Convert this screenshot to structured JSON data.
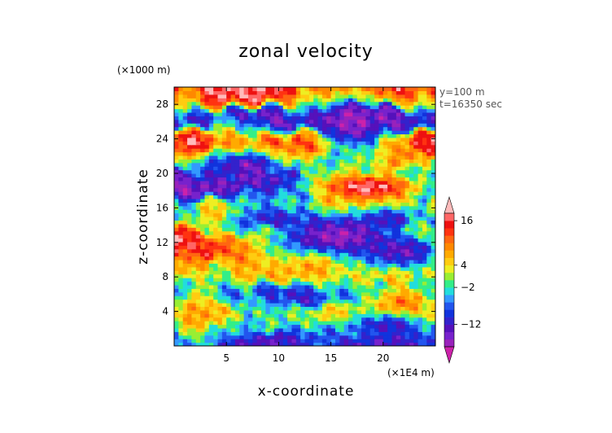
{
  "chart_data": {
    "type": "heatmap",
    "title": "zonal velocity",
    "xlabel": "x-coordinate",
    "ylabel": "z-coordinate",
    "x_unit": "(×1E4 m)",
    "y_unit": "(×1000 m)",
    "info_lines": [
      "y=100 m",
      "t=16350 sec"
    ],
    "xlim": [
      0,
      25
    ],
    "ylim": [
      0,
      30
    ],
    "x_ticks": [
      {
        "value": 5,
        "label": "5"
      },
      {
        "value": 10,
        "label": "10"
      },
      {
        "value": 15,
        "label": "15"
      },
      {
        "value": 20,
        "label": "20"
      }
    ],
    "y_ticks": [
      {
        "value": 4,
        "label": "4"
      },
      {
        "value": 8,
        "label": "8"
      },
      {
        "value": 12,
        "label": "12"
      },
      {
        "value": 16,
        "label": "16"
      },
      {
        "value": 20,
        "label": "20"
      },
      {
        "value": 24,
        "label": "24"
      },
      {
        "value": 28,
        "label": "28"
      }
    ],
    "colorbar": {
      "levels": [
        -20,
        -18,
        -16,
        -14,
        -12,
        -10,
        -8,
        -6,
        -4,
        -2,
        0,
        2,
        4,
        6,
        8,
        10,
        12,
        14,
        16,
        18,
        20
      ],
      "colors": [
        "#cc22aa",
        "#9922bb",
        "#7722cc",
        "#5511bb",
        "#3322cc",
        "#1133dd",
        "#2255ee",
        "#3399ff",
        "#22dddd",
        "#33ee88",
        "#99ee33",
        "#eeee22",
        "#ffcc11",
        "#ffaa00",
        "#ff8800",
        "#ff6611",
        "#ff3311",
        "#ee1111",
        "#ff6666",
        "#ffbbbb"
      ],
      "extend": "both",
      "tick_labels": [
        {
          "value": 16,
          "label": "16"
        },
        {
          "value": 4,
          "label": "4"
        },
        {
          "value": -2,
          "label": "−2"
        },
        {
          "value": -12,
          "label": "−12"
        }
      ]
    },
    "field": {
      "nx": 60,
      "nz": 72,
      "bands": [
        {
          "z": 0.8,
          "v": -13,
          "w": 1.0
        },
        {
          "z": 2.4,
          "v": -4,
          "w": 1.2
        },
        {
          "z": 3.8,
          "v": 6,
          "w": 1.4
        },
        {
          "z": 6.0,
          "v": -13,
          "w": 1.6
        },
        {
          "z": 8.6,
          "v": 8,
          "w": 1.6
        },
        {
          "z": 12.2,
          "v": 17,
          "w": 2.0
        },
        {
          "z": 14.6,
          "v": -10,
          "w": 1.0
        },
        {
          "z": 16.2,
          "v": 4,
          "w": 1.2
        },
        {
          "z": 18.8,
          "v": -17,
          "w": 1.8
        },
        {
          "z": 21.6,
          "v": 4,
          "w": 1.4
        },
        {
          "z": 23.8,
          "v": 17,
          "w": 1.5
        },
        {
          "z": 26.2,
          "v": -15,
          "w": 1.6
        },
        {
          "z": 29.0,
          "v": 17,
          "w": 1.3
        }
      ],
      "patches": [
        {
          "x": 15.5,
          "z": 12.5,
          "v": -17,
          "sx": 8.0,
          "sz": 3.2
        },
        {
          "x": 18.5,
          "z": 18.5,
          "v": 18,
          "sx": 6.5,
          "sz": 2.0
        },
        {
          "x": 17.0,
          "z": 26.0,
          "v": -17,
          "sx": 3.5,
          "sz": 3.5
        },
        {
          "x": 22.0,
          "z": 5.0,
          "v": 10,
          "sx": 3.5,
          "sz": 2.5
        },
        {
          "x": 20.5,
          "z": 2.4,
          "v": -12,
          "sx": 3.5,
          "sz": 1.3
        },
        {
          "x": 2.0,
          "z": 4.0,
          "v": 8,
          "sx": 2.0,
          "sz": 3.5
        },
        {
          "x": 13.5,
          "z": 9.0,
          "v": 8,
          "sx": 3.0,
          "sz": 1.8
        },
        {
          "x": 7.0,
          "z": 21.0,
          "v": -15,
          "sx": 3.5,
          "sz": 1.5
        },
        {
          "x": 22.0,
          "z": 11.0,
          "v": -14,
          "sx": 4.0,
          "sz": 2.0
        }
      ]
    }
  }
}
